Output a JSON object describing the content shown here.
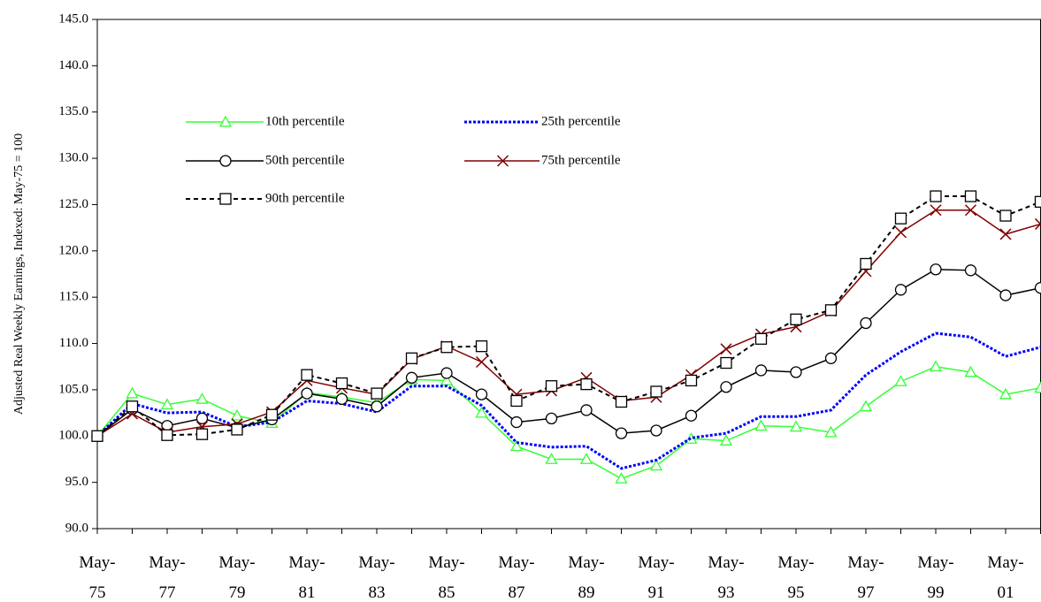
{
  "chart_data": {
    "type": "line",
    "ylabel": "Adjusted Real Weekly Earnings, Indexed: May-75 = 100",
    "categories": [
      "May-75",
      null,
      "May-77",
      null,
      "May-79",
      null,
      "May-81",
      null,
      "May-83",
      null,
      "May-85",
      null,
      "May-87",
      null,
      "May-89",
      null,
      "May-91",
      null,
      "May-93",
      null,
      "May-95",
      null,
      "May-97",
      null,
      "May-99",
      null,
      "May-01",
      null
    ],
    "ylim": [
      90,
      145
    ],
    "yticks": [
      {
        "value": 90,
        "label": "90.0"
      },
      {
        "value": 95,
        "label": "95.0"
      },
      {
        "value": 100,
        "label": "100.0"
      },
      {
        "value": 105,
        "label": "105.0"
      },
      {
        "value": 110,
        "label": "110.0"
      },
      {
        "value": 115,
        "label": "115.0"
      },
      {
        "value": 120,
        "label": "120.0"
      },
      {
        "value": 125,
        "label": "125.0"
      },
      {
        "value": 130,
        "label": "130.0"
      },
      {
        "value": 135,
        "label": "135.0"
      },
      {
        "value": 140,
        "label": "140.0"
      },
      {
        "value": 145,
        "label": "145.0"
      }
    ],
    "series": [
      {
        "name": "10th percentile",
        "color": "#33ff33",
        "marker": "triangle",
        "dash": "solid",
        "values": [
          100,
          104.6,
          103.4,
          104.0,
          102.2,
          101.4,
          104.7,
          104.2,
          103.6,
          106.1,
          106.0,
          102.5,
          98.9,
          97.5,
          97.5,
          95.4,
          96.8,
          99.7,
          99.5,
          101.1,
          101.0,
          100.4,
          103.2,
          105.9,
          107.5,
          106.9,
          104.5,
          105.2
        ]
      },
      {
        "name": "25th percentile",
        "color": "#0000ff",
        "marker": "none",
        "dash": "dotted",
        "values": [
          100,
          103.5,
          102.5,
          102.6,
          101.0,
          101.5,
          103.8,
          103.5,
          102.6,
          105.4,
          105.4,
          103.3,
          99.3,
          98.8,
          98.9,
          96.5,
          97.4,
          99.8,
          100.3,
          102.1,
          102.1,
          102.8,
          106.6,
          109.1,
          111.1,
          110.7,
          108.6,
          109.6
        ]
      },
      {
        "name": "50th percentile",
        "color": "#000000",
        "marker": "circle",
        "dash": "solid",
        "values": [
          100,
          102.9,
          101.1,
          101.9,
          100.9,
          101.8,
          104.6,
          104.0,
          103.2,
          106.3,
          106.8,
          104.5,
          101.5,
          101.9,
          102.8,
          100.3,
          100.6,
          102.2,
          105.3,
          107.1,
          106.9,
          108.4,
          112.2,
          115.8,
          118.0,
          117.9,
          115.2,
          116.0
        ]
      },
      {
        "name": "75th percentile",
        "color": "#800000",
        "marker": "x",
        "dash": "solid",
        "values": [
          100,
          102.4,
          100.4,
          101.0,
          101.3,
          102.6,
          106.0,
          105.2,
          104.5,
          108.3,
          109.7,
          108.0,
          104.5,
          104.9,
          106.3,
          103.8,
          104.2,
          106.6,
          109.4,
          111.0,
          111.8,
          113.5,
          117.8,
          122.0,
          124.4,
          124.4,
          121.8,
          122.9
        ]
      },
      {
        "name": "90th percentile",
        "color": "#000000",
        "marker": "square",
        "dash": "dashed",
        "values": [
          100,
          103.2,
          100.1,
          100.2,
          100.7,
          102.3,
          106.6,
          105.7,
          104.6,
          108.4,
          109.6,
          109.7,
          103.8,
          105.4,
          105.6,
          103.7,
          104.8,
          106.0,
          107.9,
          110.5,
          112.6,
          113.6,
          118.6,
          123.5,
          125.9,
          125.9,
          123.8,
          125.3
        ]
      }
    ]
  }
}
